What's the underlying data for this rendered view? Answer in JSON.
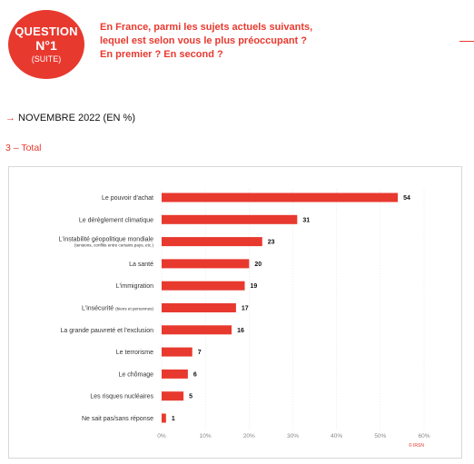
{
  "header": {
    "badge": {
      "line1": "QUESTION",
      "line2": "N°1",
      "line3": "(SUITE)"
    },
    "question": [
      "En France, parmi les sujets actuels suivants,",
      "lequel est selon vous le plus préoccupant ?",
      "En premier ? En second ?"
    ]
  },
  "period": {
    "arrow": "→",
    "label": "NOVEMBRE 2022 (EN %)"
  },
  "subtitle": "3 – Total",
  "source": "© IRSN",
  "colors": {
    "accent": "#e8392f",
    "bar": "#e8392f"
  },
  "chart_data": {
    "type": "bar",
    "orientation": "horizontal",
    "categories": [
      "Le pouvoir d'achat",
      "Le dérèglement climatique",
      "L'instabilité géopolitique mondiale",
      "La santé",
      "L'immigration",
      "L'insécurité",
      "La grande pauvreté et l'exclusion",
      "Le terrorisme",
      "Le chômage",
      "Les risques nucléaires",
      "Ne sait pas/sans réponse"
    ],
    "category_notes": [
      "",
      "",
      "(tensions, conflits entre certains pays, etc.)",
      "",
      "",
      "(biens et personnes)",
      "",
      "",
      "",
      "",
      ""
    ],
    "values": [
      54,
      31,
      23,
      20,
      19,
      17,
      16,
      7,
      6,
      5,
      1
    ],
    "xlim": [
      0,
      60
    ],
    "xticks": [
      "0%",
      "10%",
      "20%",
      "30%",
      "40%",
      "50%",
      "60%"
    ],
    "grid": true
  }
}
